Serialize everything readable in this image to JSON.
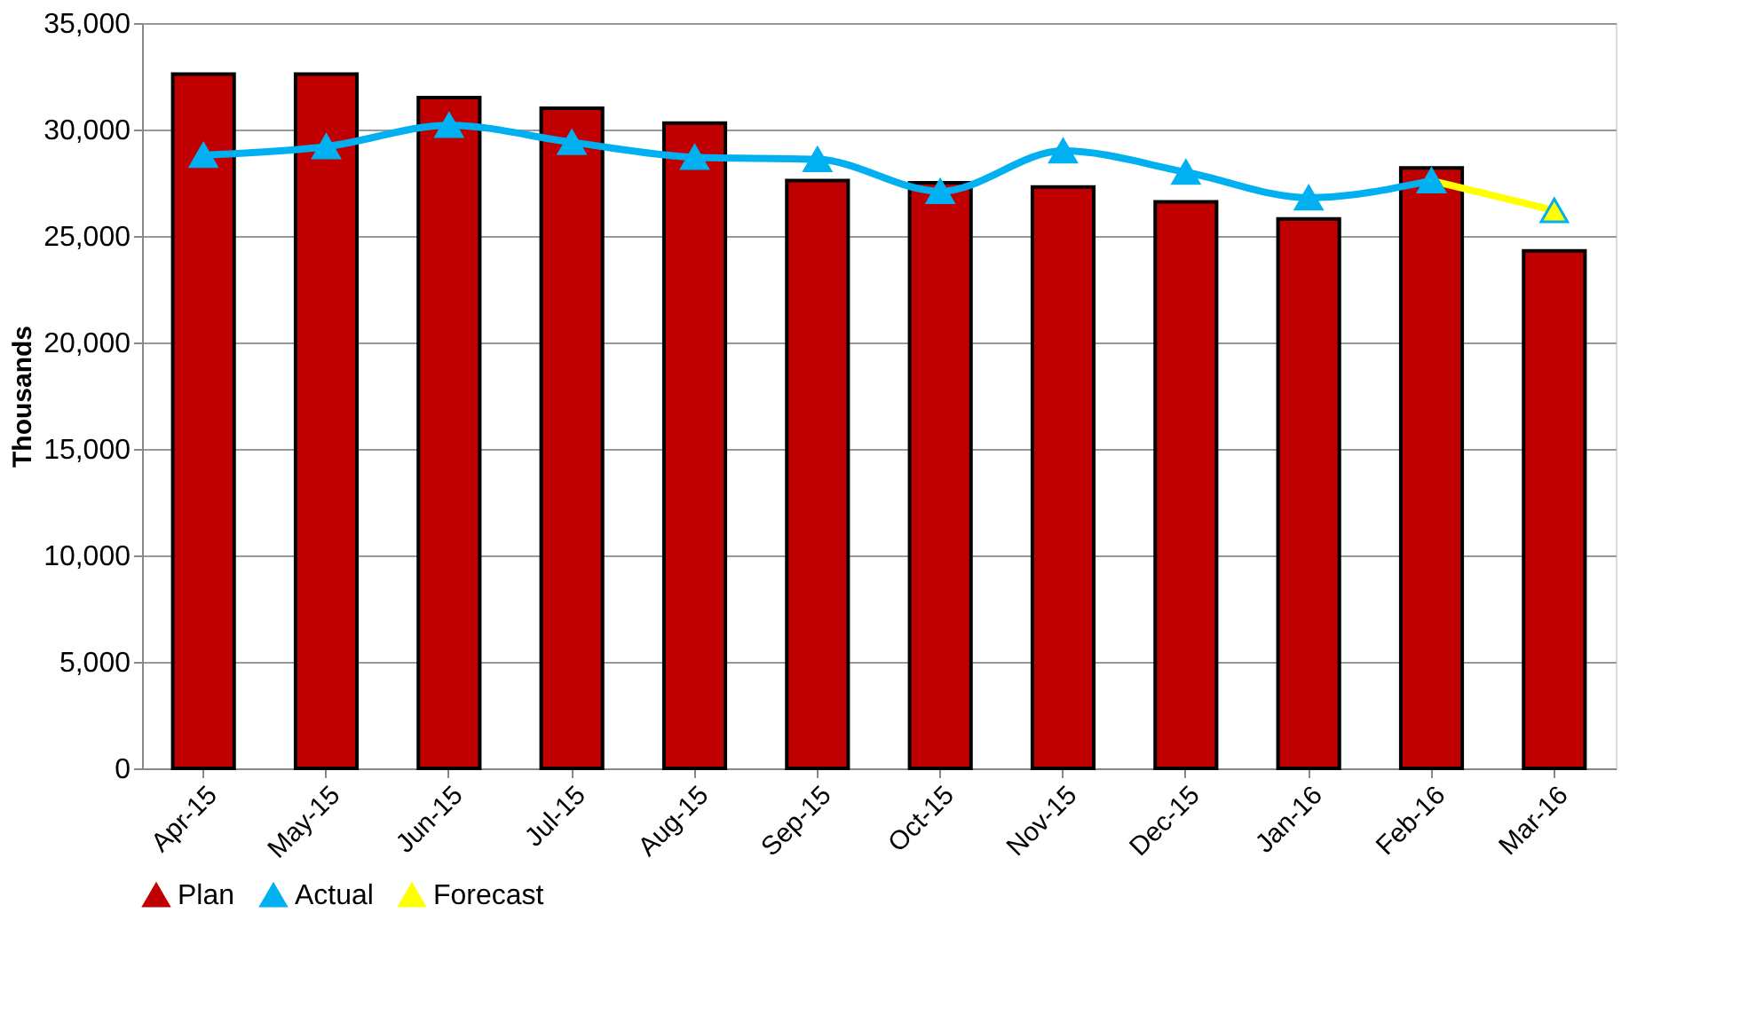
{
  "chart_data": {
    "type": "bar",
    "ylabel": "Thousands",
    "categories": [
      "Apr-15",
      "May-15",
      "Jun-15",
      "Jul-15",
      "Aug-15",
      "Sep-15",
      "Oct-15",
      "Nov-15",
      "Dec-15",
      "Jan-16",
      "Feb-16",
      "Mar-16"
    ],
    "series": [
      {
        "name": "Plan",
        "color": "#c00000",
        "values": [
          32600,
          32600,
          31500,
          31000,
          30300,
          27600,
          27500,
          27300,
          26600,
          25800,
          28200,
          24300
        ]
      },
      {
        "name": "Actual",
        "type": "line",
        "color": "#00b0f0",
        "values": [
          28800,
          29200,
          30200,
          29400,
          28700,
          28600,
          27100,
          29000,
          28000,
          26800,
          27600,
          null
        ]
      },
      {
        "name": "Forecast",
        "type": "line",
        "color": "#ffff00",
        "values": [
          null,
          null,
          null,
          null,
          null,
          null,
          null,
          null,
          null,
          null,
          27600,
          26200
        ]
      }
    ],
    "ylim": [
      0,
      35000
    ],
    "yticks": [
      0,
      {
        "value": 5000,
        "label": "5,000"
      },
      {
        "value": 10000,
        "label": "10,000"
      },
      {
        "value": 15000,
        "label": "15,000"
      },
      {
        "value": 20000,
        "label": "20,000"
      },
      {
        "value": 25000,
        "label": "25,000"
      },
      {
        "value": 30000,
        "label": "30,000"
      },
      {
        "value": 35000,
        "label": "35,000"
      }
    ],
    "grid": "y",
    "legend": "bottom",
    "marker": "triangle"
  }
}
